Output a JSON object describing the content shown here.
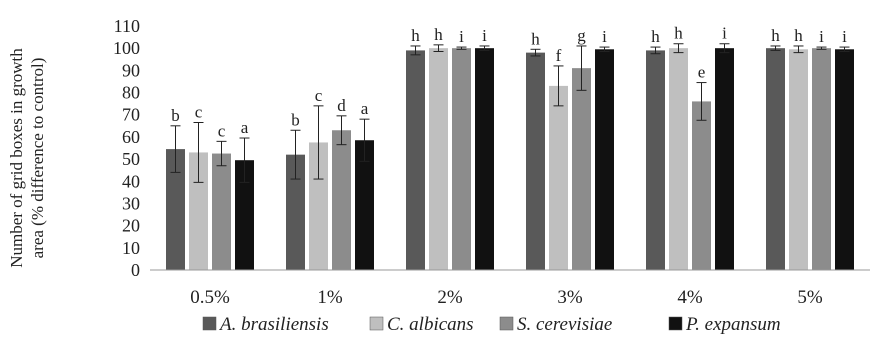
{
  "chart_data": {
    "type": "bar",
    "title": "",
    "xlabel": "",
    "ylabel_lines": [
      "Number of grid boxes in growth",
      "area  (% difference to control)"
    ],
    "ylim": [
      0,
      110
    ],
    "yticks": [
      0,
      10,
      20,
      30,
      40,
      50,
      60,
      70,
      80,
      90,
      100,
      110
    ],
    "grid": false,
    "legend_position": "bottom",
    "categories": [
      "0.5%",
      "1%",
      "2%",
      "3%",
      "4%",
      "5%"
    ],
    "series": [
      {
        "name": "A. brasiliensis",
        "color": "#595959",
        "values": [
          54.5,
          52,
          99,
          98,
          99,
          100
        ],
        "errors": [
          10.5,
          11,
          2,
          1.5,
          1.5,
          1
        ],
        "labels": [
          "b",
          "b",
          "h",
          "h",
          "h",
          "h"
        ]
      },
      {
        "name": "C. albicans",
        "color": "#bfbfbf",
        "values": [
          53,
          57.5,
          100,
          83,
          100,
          99.5
        ],
        "errors": [
          13.5,
          16.5,
          1.5,
          9,
          2,
          1.5
        ],
        "labels": [
          "c",
          "c",
          "h",
          "f",
          "h",
          "h"
        ]
      },
      {
        "name": "S. cerevisiae",
        "color": "#8c8c8c",
        "values": [
          52.5,
          63,
          100,
          91,
          76,
          100
        ],
        "errors": [
          5.5,
          6.5,
          0.5,
          10,
          8.5,
          0.5
        ],
        "labels": [
          "c",
          "d",
          "i",
          "g",
          "e",
          "i"
        ]
      },
      {
        "name": "P. expansum",
        "color": "#111111",
        "values": [
          49.5,
          58.5,
          100,
          99.5,
          100,
          99.5
        ],
        "errors": [
          10,
          9.5,
          1,
          1,
          2,
          1
        ],
        "labels": [
          "a",
          "a",
          "i",
          "i",
          "i",
          "i"
        ]
      }
    ]
  }
}
